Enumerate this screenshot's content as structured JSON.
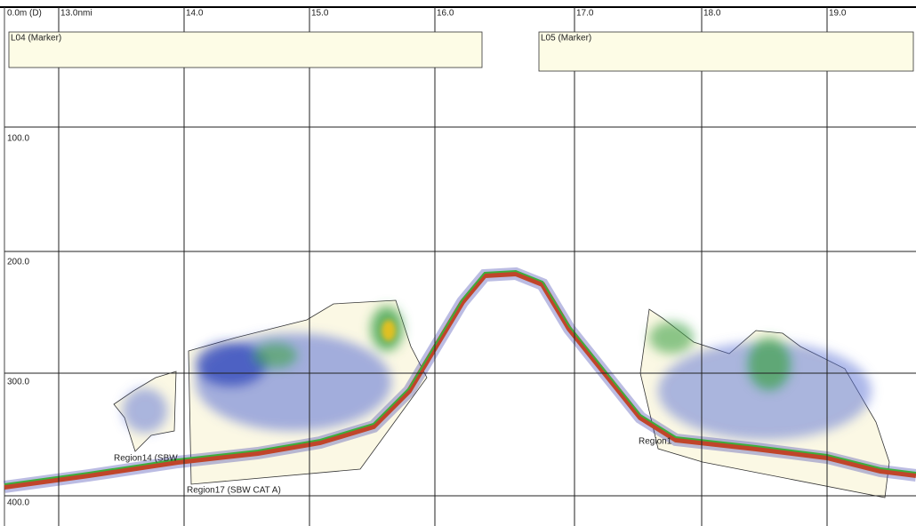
{
  "header": {
    "origin": "0.0m (D)",
    "distances": [
      "13.0nmi",
      "14.0",
      "15.0",
      "16.0",
      "17.0",
      "18.0",
      "19.0"
    ]
  },
  "depths": [
    "100.0",
    "200.0",
    "300.0",
    "400.0"
  ],
  "markers": [
    "L04 (Marker)",
    "L05 (Marker)"
  ],
  "regions": [
    "Region14 (SBW",
    "Region17 (SBW CAT A)",
    "Region1"
  ]
}
